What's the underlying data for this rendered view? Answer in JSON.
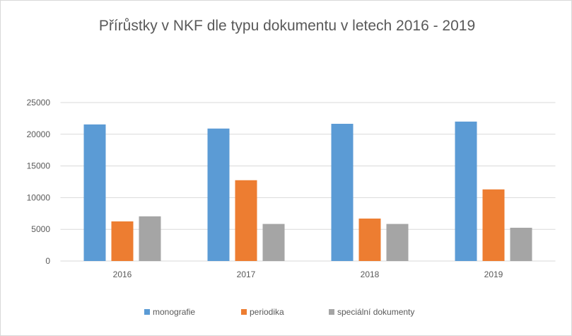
{
  "chart_data": {
    "type": "bar",
    "title": "Přírůstky v NKF dle typu dokumentu v letech 2016 - 2019",
    "categories": [
      "2016",
      "2017",
      "2018",
      "2019"
    ],
    "series": [
      {
        "name": "monografie",
        "color": "#5b9bd5",
        "values": [
          21550,
          20900,
          21650,
          22000
        ]
      },
      {
        "name": "periodika",
        "color": "#ed7d31",
        "values": [
          6250,
          12750,
          6700,
          11300
        ]
      },
      {
        "name": "speciální dokumenty",
        "color": "#a5a5a5",
        "values": [
          7050,
          5850,
          5850,
          5250
        ]
      }
    ],
    "ylim": [
      0,
      25000
    ],
    "yticks": [
      "0",
      "5000",
      "10000",
      "15000",
      "20000",
      "25000"
    ],
    "grid": true,
    "legend": "bottom"
  }
}
